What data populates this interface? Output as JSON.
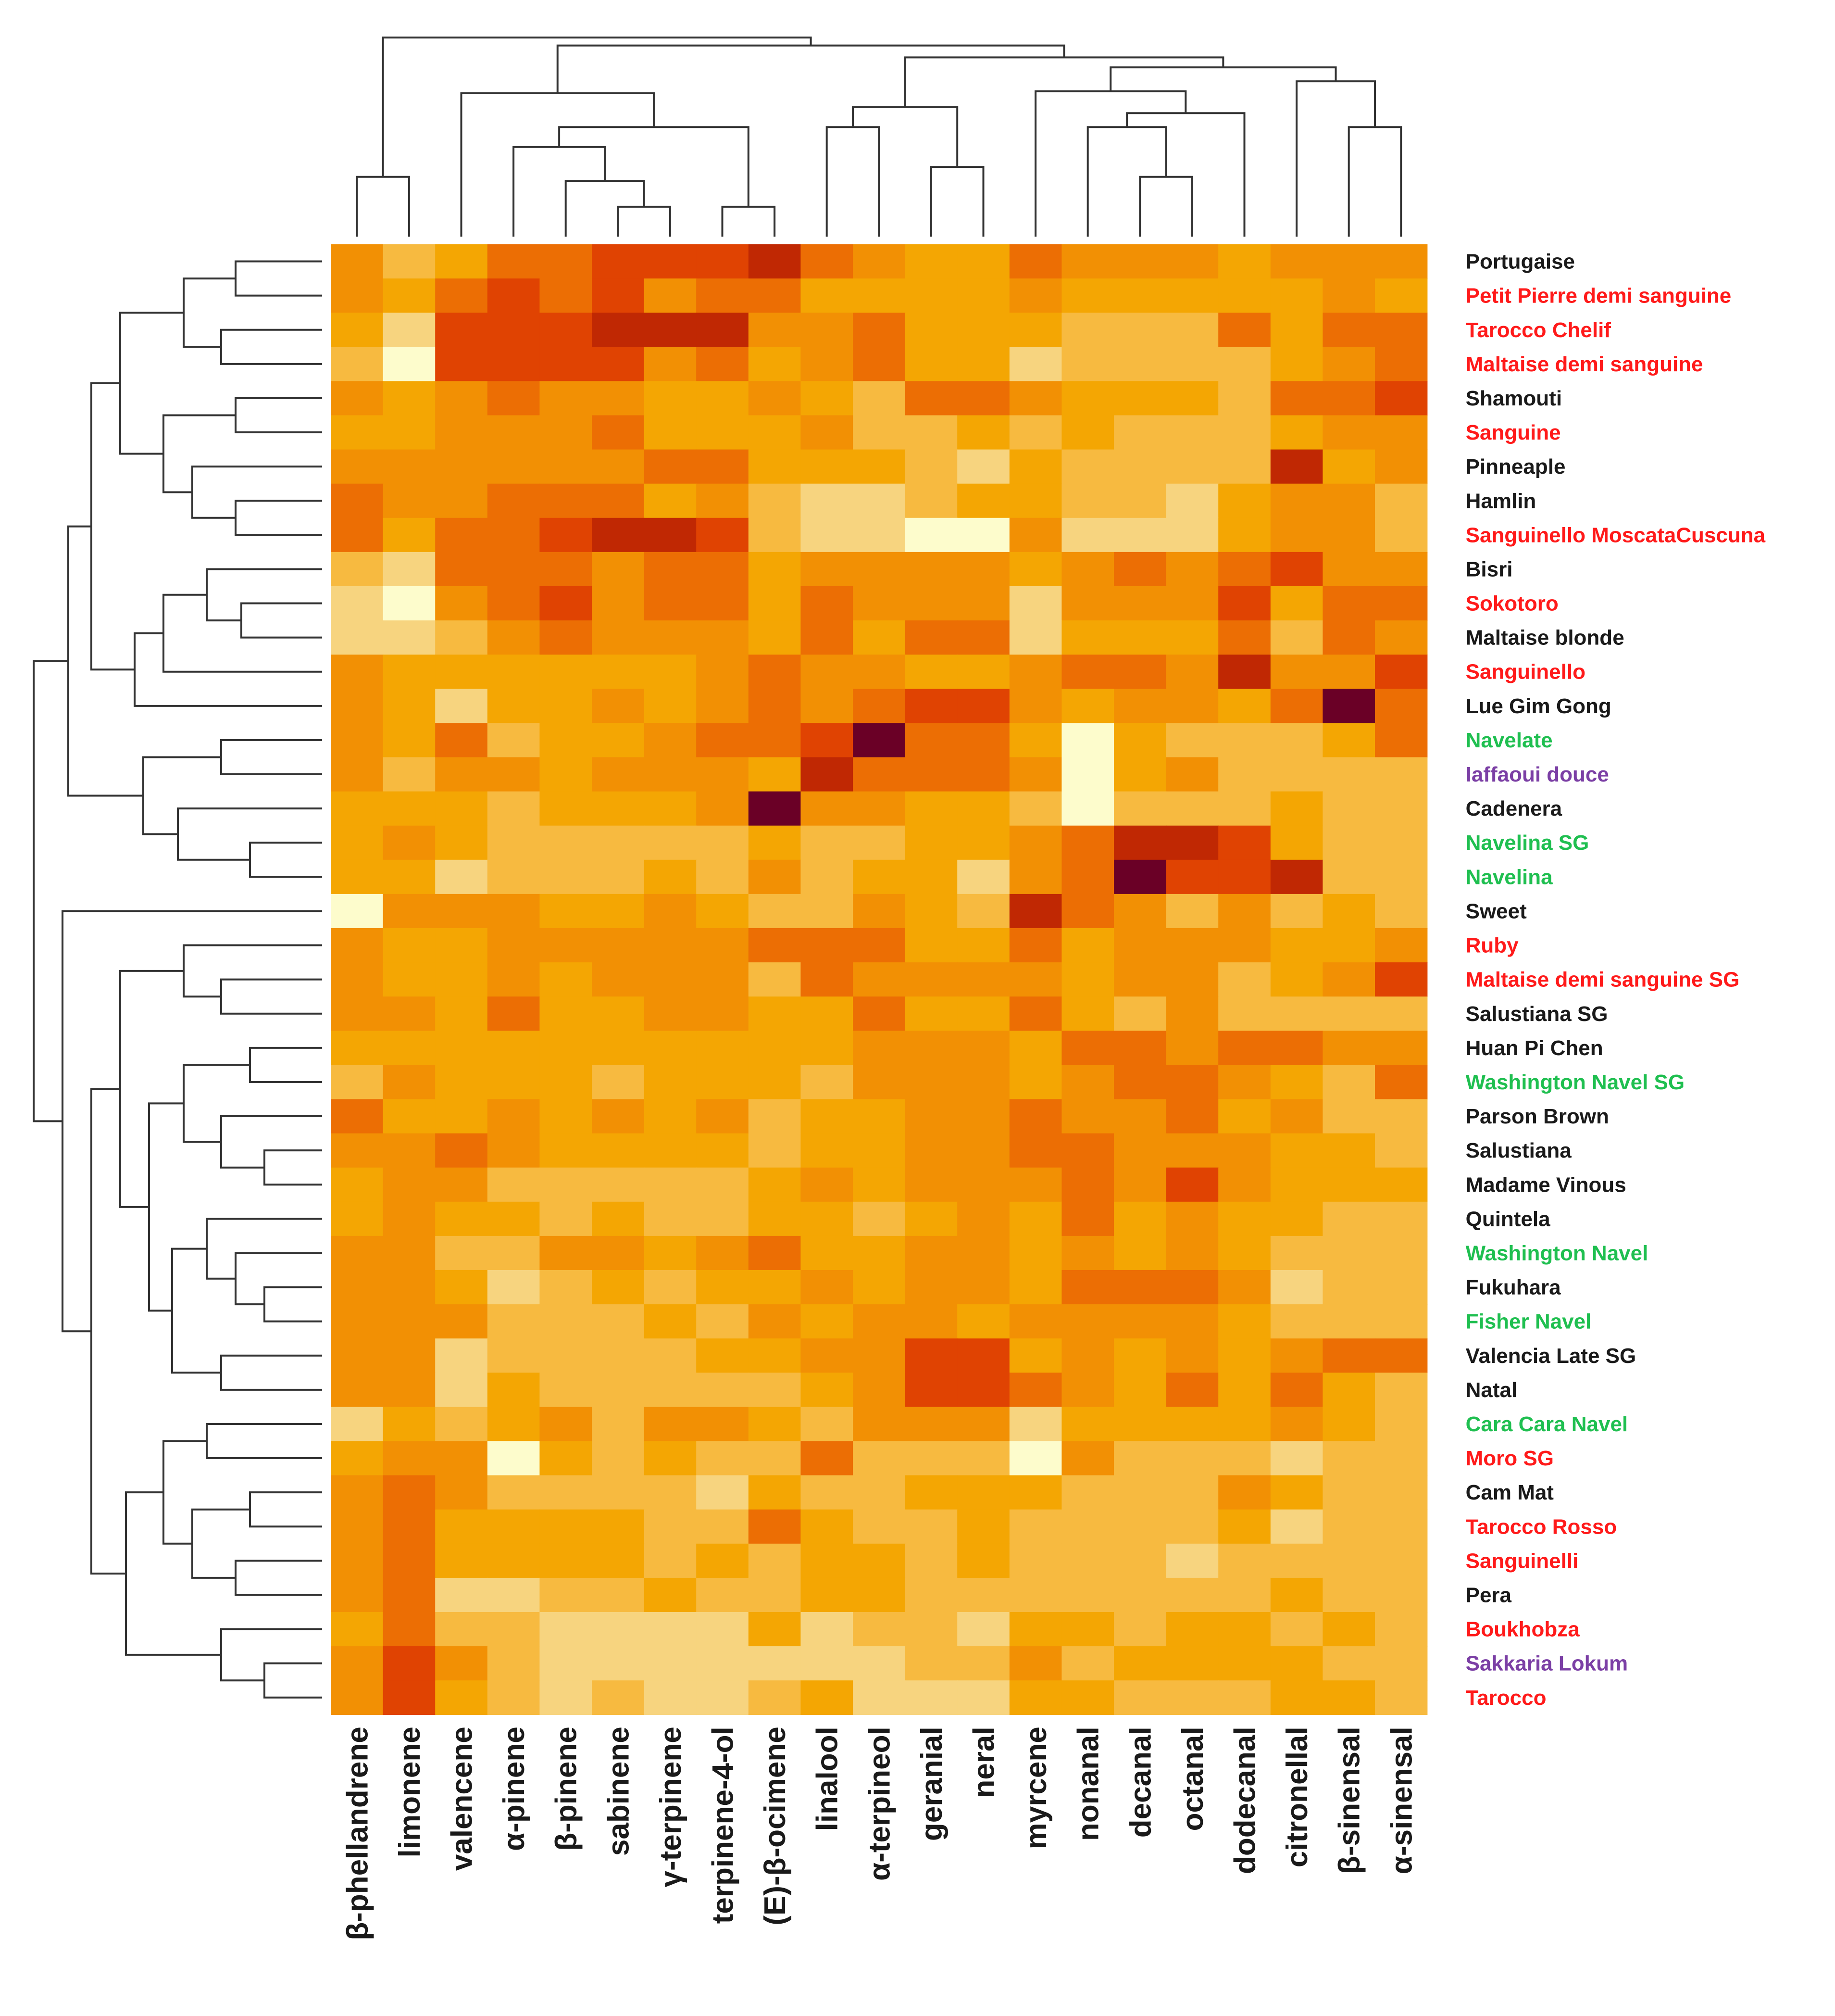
{
  "chart_data": {
    "type": "heatmap",
    "title": "",
    "xlabel": "",
    "ylabel": "",
    "columns": [
      "β-phellandrene",
      "limonene",
      "valencene",
      "α-pinene",
      "β-pinene",
      "sabinene",
      "γ-terpinene",
      "terpinene-4-ol",
      "(E)-β-ocimene",
      "linalool",
      "α-terpineol",
      "geranial",
      "neral",
      "myrcene",
      "nonanal",
      "decanal",
      "octanal",
      "dodecanal",
      "citronellal",
      "β-sinensal",
      "α-sinensal"
    ],
    "rows": [
      {
        "label": "Portugaise",
        "group": "black"
      },
      {
        "label": "Petit Pierre demi sanguine",
        "group": "red"
      },
      {
        "label": "Tarocco Chelif",
        "group": "red"
      },
      {
        "label": "Maltaise demi sanguine",
        "group": "red"
      },
      {
        "label": "Shamouti",
        "group": "black"
      },
      {
        "label": "Sanguine",
        "group": "red"
      },
      {
        "label": "Pinneaple",
        "group": "black"
      },
      {
        "label": "Hamlin",
        "group": "black"
      },
      {
        "label": "Sanguinello MoscataCuscuna",
        "group": "red"
      },
      {
        "label": "Bisri",
        "group": "black"
      },
      {
        "label": "Sokotoro",
        "group": "red"
      },
      {
        "label": "Maltaise blonde",
        "group": "black"
      },
      {
        "label": "Sanguinello",
        "group": "red"
      },
      {
        "label": "Lue Gim Gong",
        "group": "black"
      },
      {
        "label": "Navelate",
        "group": "green"
      },
      {
        "label": "Iaffaoui douce",
        "group": "purple"
      },
      {
        "label": "Cadenera",
        "group": "black"
      },
      {
        "label": "Navelina SG",
        "group": "green"
      },
      {
        "label": "Navelina",
        "group": "green"
      },
      {
        "label": "Sweet",
        "group": "black"
      },
      {
        "label": "Ruby",
        "group": "red"
      },
      {
        "label": "Maltaise demi sanguine SG",
        "group": "red"
      },
      {
        "label": "Salustiana SG",
        "group": "black"
      },
      {
        "label": "Huan Pi Chen",
        "group": "black"
      },
      {
        "label": "Washington Navel SG",
        "group": "green"
      },
      {
        "label": "Parson Brown",
        "group": "black"
      },
      {
        "label": "Salustiana",
        "group": "black"
      },
      {
        "label": "Madame Vinous",
        "group": "black"
      },
      {
        "label": "Quintela",
        "group": "black"
      },
      {
        "label": "Washington Navel",
        "group": "green"
      },
      {
        "label": "Fukuhara",
        "group": "black"
      },
      {
        "label": "Fisher Navel",
        "group": "green"
      },
      {
        "label": "Valencia Late SG",
        "group": "black"
      },
      {
        "label": "Natal",
        "group": "black"
      },
      {
        "label": "Cara Cara Navel",
        "group": "green"
      },
      {
        "label": "Moro SG",
        "group": "red"
      },
      {
        "label": "Cam Mat",
        "group": "black"
      },
      {
        "label": "Tarocco Rosso",
        "group": "red"
      },
      {
        "label": "Sanguinelli",
        "group": "red"
      },
      {
        "label": "Pera",
        "group": "black"
      },
      {
        "label": "Boukhobza",
        "group": "red"
      },
      {
        "label": "Sakkaria Lokum",
        "group": "purple"
      },
      {
        "label": "Tarocco",
        "group": "red"
      }
    ],
    "value_scale": "0 = lightest (pale yellow) … 8 = darkest (dark maroon)",
    "values": [
      [
        4,
        2,
        3,
        5,
        5,
        6,
        6,
        6,
        7,
        5,
        4,
        3,
        3,
        5,
        4,
        4,
        4,
        3,
        4,
        4,
        4
      ],
      [
        4,
        3,
        5,
        6,
        5,
        6,
        4,
        5,
        5,
        3,
        3,
        3,
        3,
        4,
        3,
        3,
        3,
        3,
        3,
        4,
        3
      ],
      [
        3,
        1,
        6,
        6,
        6,
        7,
        7,
        7,
        4,
        4,
        5,
        3,
        3,
        3,
        2,
        2,
        2,
        5,
        3,
        5,
        5
      ],
      [
        2,
        0,
        6,
        6,
        6,
        6,
        4,
        5,
        3,
        4,
        5,
        3,
        3,
        1,
        2,
        2,
        2,
        2,
        3,
        4,
        5
      ],
      [
        4,
        3,
        4,
        5,
        4,
        4,
        3,
        3,
        4,
        3,
        2,
        5,
        5,
        4,
        3,
        3,
        3,
        2,
        5,
        5,
        6
      ],
      [
        3,
        3,
        4,
        4,
        4,
        5,
        3,
        3,
        3,
        4,
        2,
        2,
        3,
        2,
        3,
        2,
        2,
        2,
        3,
        4,
        4
      ],
      [
        4,
        4,
        4,
        4,
        4,
        4,
        5,
        5,
        3,
        3,
        3,
        2,
        1,
        3,
        2,
        2,
        2,
        2,
        7,
        3,
        4
      ],
      [
        5,
        4,
        4,
        5,
        5,
        5,
        3,
        4,
        2,
        1,
        1,
        2,
        3,
        3,
        2,
        2,
        1,
        3,
        4,
        4,
        2
      ],
      [
        5,
        3,
        5,
        5,
        6,
        7,
        7,
        6,
        2,
        1,
        1,
        0,
        0,
        4,
        1,
        1,
        1,
        3,
        4,
        4,
        2
      ],
      [
        2,
        1,
        5,
        5,
        5,
        4,
        5,
        5,
        3,
        4,
        4,
        4,
        4,
        3,
        4,
        5,
        4,
        5,
        6,
        4,
        4
      ],
      [
        1,
        0,
        4,
        5,
        6,
        4,
        5,
        5,
        3,
        5,
        4,
        4,
        4,
        1,
        4,
        4,
        4,
        6,
        3,
        5,
        5
      ],
      [
        1,
        1,
        2,
        4,
        5,
        4,
        4,
        4,
        3,
        5,
        3,
        5,
        5,
        1,
        3,
        3,
        3,
        5,
        2,
        5,
        4
      ],
      [
        4,
        3,
        3,
        3,
        3,
        3,
        3,
        4,
        5,
        4,
        4,
        3,
        3,
        4,
        5,
        5,
        4,
        7,
        4,
        4,
        6
      ],
      [
        4,
        3,
        1,
        3,
        3,
        4,
        3,
        4,
        5,
        4,
        5,
        6,
        6,
        4,
        3,
        4,
        4,
        3,
        5,
        8,
        5
      ],
      [
        4,
        3,
        5,
        2,
        3,
        3,
        4,
        5,
        5,
        6,
        8,
        5,
        5,
        3,
        0,
        3,
        2,
        2,
        2,
        3,
        5
      ],
      [
        4,
        2,
        4,
        4,
        3,
        4,
        4,
        4,
        3,
        7,
        5,
        5,
        5,
        4,
        0,
        3,
        4,
        2,
        2,
        2,
        2
      ],
      [
        3,
        3,
        3,
        2,
        3,
        3,
        3,
        4,
        8,
        4,
        4,
        3,
        3,
        2,
        0,
        2,
        2,
        2,
        3,
        2,
        2
      ],
      [
        3,
        4,
        3,
        2,
        2,
        2,
        2,
        2,
        3,
        2,
        2,
        3,
        3,
        4,
        5,
        7,
        7,
        6,
        3,
        2,
        2
      ],
      [
        3,
        3,
        1,
        2,
        2,
        2,
        3,
        2,
        4,
        2,
        3,
        3,
        1,
        4,
        5,
        8,
        6,
        6,
        7,
        2,
        2
      ],
      [
        0,
        4,
        4,
        4,
        3,
        3,
        4,
        3,
        2,
        2,
        4,
        3,
        2,
        7,
        5,
        4,
        2,
        4,
        2,
        3,
        2
      ],
      [
        4,
        3,
        3,
        4,
        4,
        4,
        4,
        4,
        5,
        5,
        5,
        3,
        3,
        5,
        3,
        4,
        4,
        4,
        3,
        3,
        4
      ],
      [
        4,
        3,
        3,
        4,
        3,
        4,
        4,
        4,
        2,
        5,
        4,
        4,
        4,
        4,
        3,
        4,
        4,
        2,
        3,
        4,
        6
      ],
      [
        4,
        4,
        3,
        5,
        3,
        3,
        4,
        4,
        3,
        3,
        5,
        3,
        3,
        5,
        3,
        2,
        4,
        2,
        2,
        2,
        2
      ],
      [
        3,
        3,
        3,
        3,
        3,
        3,
        3,
        3,
        3,
        3,
        4,
        4,
        4,
        3,
        5,
        5,
        4,
        5,
        5,
        4,
        4
      ],
      [
        2,
        4,
        3,
        3,
        3,
        2,
        3,
        3,
        3,
        2,
        4,
        4,
        4,
        3,
        4,
        5,
        5,
        4,
        3,
        2,
        5
      ],
      [
        5,
        3,
        3,
        4,
        3,
        4,
        3,
        4,
        2,
        3,
        3,
        4,
        4,
        5,
        4,
        4,
        5,
        3,
        4,
        2,
        2
      ],
      [
        4,
        4,
        5,
        4,
        3,
        3,
        3,
        3,
        2,
        3,
        3,
        4,
        4,
        5,
        5,
        4,
        4,
        4,
        3,
        3,
        2
      ],
      [
        3,
        4,
        4,
        2,
        2,
        2,
        2,
        2,
        3,
        4,
        3,
        4,
        4,
        4,
        5,
        4,
        6,
        4,
        3,
        3,
        3
      ],
      [
        3,
        4,
        3,
        3,
        2,
        3,
        2,
        2,
        3,
        3,
        2,
        3,
        4,
        3,
        5,
        3,
        4,
        3,
        3,
        2,
        2
      ],
      [
        4,
        4,
        2,
        2,
        4,
        4,
        3,
        4,
        5,
        3,
        3,
        4,
        4,
        3,
        4,
        3,
        4,
        3,
        2,
        2,
        2
      ],
      [
        4,
        4,
        3,
        1,
        2,
        3,
        2,
        3,
        3,
        4,
        3,
        4,
        4,
        3,
        5,
        5,
        5,
        4,
        1,
        2,
        2
      ],
      [
        4,
        4,
        4,
        2,
        2,
        2,
        3,
        2,
        4,
        3,
        4,
        4,
        3,
        4,
        4,
        4,
        4,
        3,
        2,
        2,
        2
      ],
      [
        4,
        4,
        1,
        2,
        2,
        2,
        2,
        3,
        3,
        4,
        4,
        6,
        6,
        3,
        4,
        3,
        4,
        3,
        4,
        5,
        5
      ],
      [
        4,
        4,
        1,
        3,
        2,
        2,
        2,
        2,
        2,
        3,
        4,
        6,
        6,
        5,
        4,
        3,
        5,
        3,
        5,
        3,
        2
      ],
      [
        1,
        3,
        2,
        3,
        4,
        2,
        4,
        4,
        3,
        2,
        4,
        4,
        4,
        1,
        3,
        3,
        3,
        3,
        4,
        3,
        2
      ],
      [
        3,
        4,
        4,
        0,
        3,
        2,
        3,
        2,
        2,
        5,
        2,
        2,
        2,
        0,
        4,
        2,
        2,
        2,
        1,
        2,
        2
      ],
      [
        4,
        5,
        4,
        2,
        2,
        2,
        2,
        1,
        3,
        2,
        2,
        3,
        3,
        3,
        2,
        2,
        2,
        4,
        3,
        2,
        2
      ],
      [
        4,
        5,
        3,
        3,
        3,
        3,
        2,
        2,
        5,
        3,
        2,
        2,
        3,
        2,
        2,
        2,
        2,
        3,
        1,
        2,
        2
      ],
      [
        4,
        5,
        3,
        3,
        3,
        3,
        2,
        3,
        2,
        3,
        3,
        2,
        3,
        2,
        2,
        2,
        1,
        2,
        2,
        2,
        2
      ],
      [
        4,
        5,
        1,
        1,
        2,
        2,
        3,
        2,
        2,
        3,
        3,
        2,
        2,
        2,
        2,
        2,
        2,
        2,
        3,
        2,
        2
      ],
      [
        3,
        5,
        2,
        2,
        1,
        1,
        1,
        1,
        3,
        1,
        2,
        2,
        1,
        3,
        3,
        2,
        3,
        3,
        2,
        3,
        2
      ],
      [
        4,
        6,
        4,
        2,
        1,
        1,
        1,
        1,
        1,
        1,
        1,
        2,
        2,
        4,
        2,
        3,
        3,
        3,
        3,
        2,
        2
      ],
      [
        4,
        6,
        3,
        2,
        1,
        2,
        1,
        1,
        2,
        3,
        1,
        1,
        1,
        3,
        3,
        2,
        2,
        2,
        3,
        3,
        2
      ]
    ],
    "palette": [
      "#fdfccc",
      "#f7d47f",
      "#f7ba40",
      "#f4a603",
      "#f29004",
      "#ec6e04",
      "#e04302",
      "#c02803",
      "#6a0026"
    ],
    "label_colors": {
      "black": "#1a1a1a",
      "red": "#ff1a1a",
      "green": "#1fbf50",
      "purple": "#7b3fa5"
    },
    "legend": "none"
  }
}
